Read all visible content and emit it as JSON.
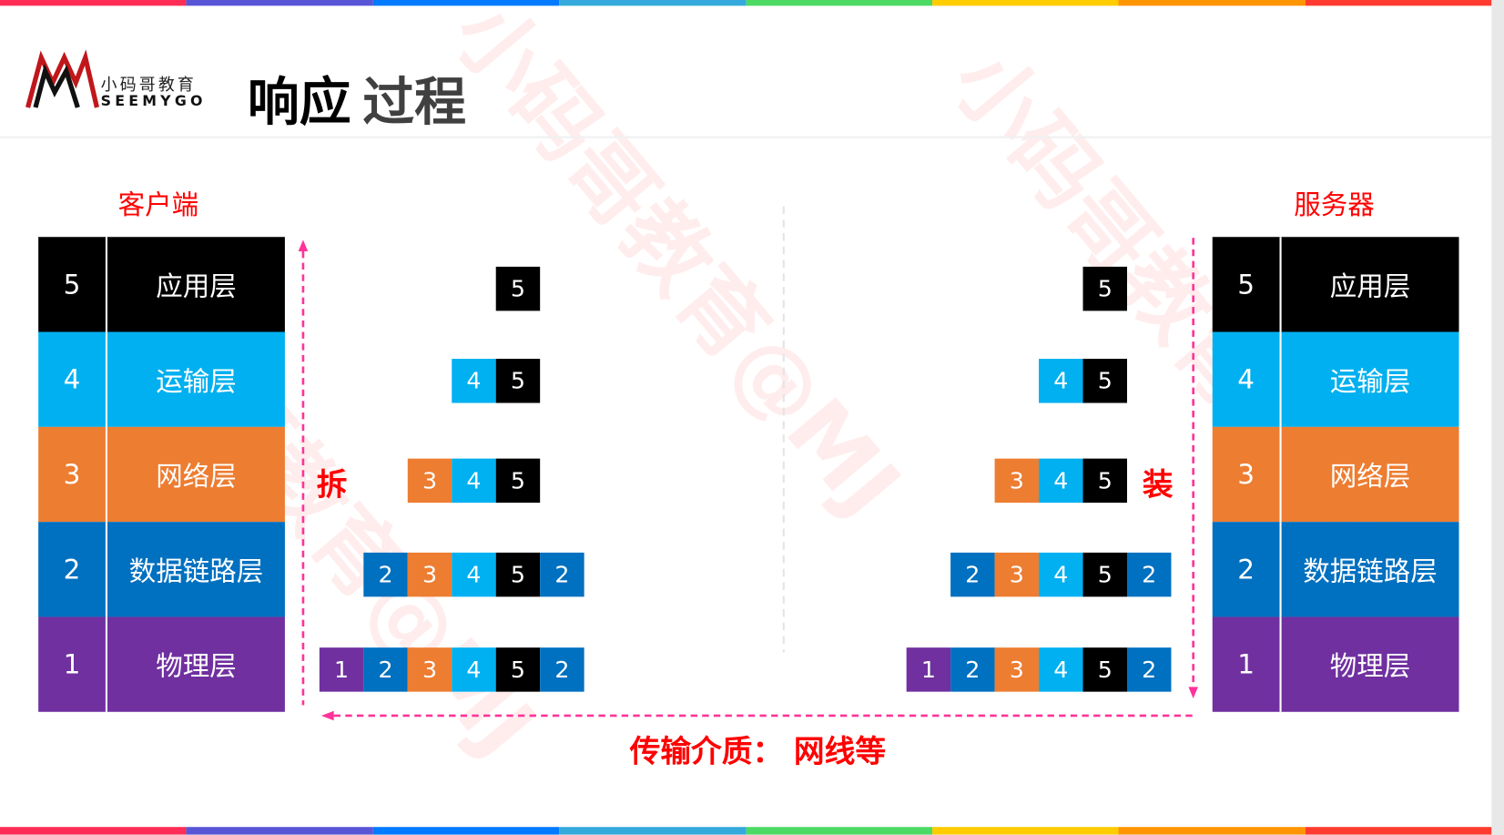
{
  "header": {
    "logo_cn": "小码哥教育",
    "logo_en": "SEEMYGO",
    "title_part1": "响应",
    "title_part2": "过程"
  },
  "client": {
    "label": "客户端"
  },
  "server": {
    "label": "服务器"
  },
  "layers": [
    {
      "num": "5",
      "name": "应用层",
      "color": "#000000"
    },
    {
      "num": "4",
      "name": "运输层",
      "color": "#00b0f0"
    },
    {
      "num": "3",
      "name": "网络层",
      "color": "#ed7d31"
    },
    {
      "num": "2",
      "name": "数据链路层",
      "color": "#0070c0"
    },
    {
      "num": "1",
      "name": "物理层",
      "color": "#7030a0"
    }
  ],
  "packets": [
    [
      "5"
    ],
    [
      "4",
      "5"
    ],
    [
      "3",
      "4",
      "5"
    ],
    [
      "2",
      "3",
      "4",
      "5",
      "2"
    ],
    [
      "1",
      "2",
      "3",
      "4",
      "5",
      "2"
    ]
  ],
  "client_action": "拆",
  "server_action": "装",
  "medium": "传输介质： 网线等",
  "watermark": "小码哥教育@MJ",
  "colors": {
    "accent": "#ff0000",
    "arrow": "#ff3399",
    "top_bar": [
      "#ff2d55",
      "#5856d6",
      "#007aff",
      "#34aadc",
      "#4cd964",
      "#ffcc00",
      "#ff9500",
      "#ff3b30"
    ]
  }
}
